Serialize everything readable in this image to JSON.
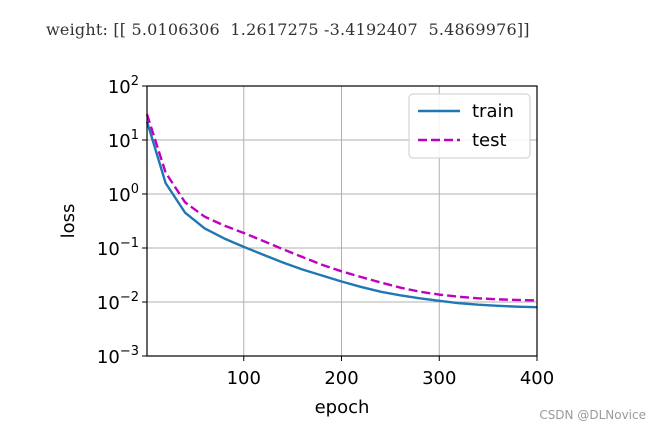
{
  "header": {
    "weights_text": "weight: [[ 5.0106306  1.2617275 -3.4192407  5.4869976]]"
  },
  "watermark": "CSDN @DLNovice",
  "chart_data": {
    "type": "line",
    "xlabel": "epoch",
    "ylabel": "loss",
    "xlim": [
      1,
      400
    ],
    "xticks": [
      100,
      200,
      300,
      400
    ],
    "ylim": [
      0.001,
      100
    ],
    "yscale": "log",
    "yticks": [
      {
        "value": 100,
        "base": "10",
        "exp": "2"
      },
      {
        "value": 10,
        "base": "10",
        "exp": "1"
      },
      {
        "value": 1,
        "base": "10",
        "exp": "0"
      },
      {
        "value": 0.1,
        "base": "10",
        "exp": "−1"
      },
      {
        "value": 0.01,
        "base": "10",
        "exp": "−2"
      },
      {
        "value": 0.001,
        "base": "10",
        "exp": "−3"
      }
    ],
    "grid": true,
    "legend_position": "top-right",
    "series": [
      {
        "name": "train",
        "color": "#1f77b4",
        "style": "solid",
        "x": [
          1,
          20,
          40,
          60,
          80,
          100,
          120,
          140,
          160,
          180,
          200,
          220,
          240,
          260,
          280,
          300,
          320,
          340,
          360,
          380,
          400
        ],
        "y": [
          22,
          1.6,
          0.45,
          0.23,
          0.15,
          0.105,
          0.075,
          0.054,
          0.04,
          0.031,
          0.024,
          0.019,
          0.0155,
          0.0133,
          0.0117,
          0.0105,
          0.0095,
          0.0089,
          0.0085,
          0.0082,
          0.008
        ]
      },
      {
        "name": "test",
        "color": "#bf00bf",
        "style": "dashed",
        "x": [
          1,
          20,
          40,
          60,
          80,
          100,
          120,
          140,
          160,
          180,
          200,
          220,
          240,
          260,
          280,
          300,
          320,
          340,
          360,
          380,
          400
        ],
        "y": [
          30,
          2.5,
          0.7,
          0.38,
          0.26,
          0.19,
          0.135,
          0.095,
          0.068,
          0.049,
          0.037,
          0.029,
          0.023,
          0.0185,
          0.0155,
          0.0137,
          0.0125,
          0.0117,
          0.0112,
          0.0109,
          0.0107
        ]
      }
    ]
  }
}
